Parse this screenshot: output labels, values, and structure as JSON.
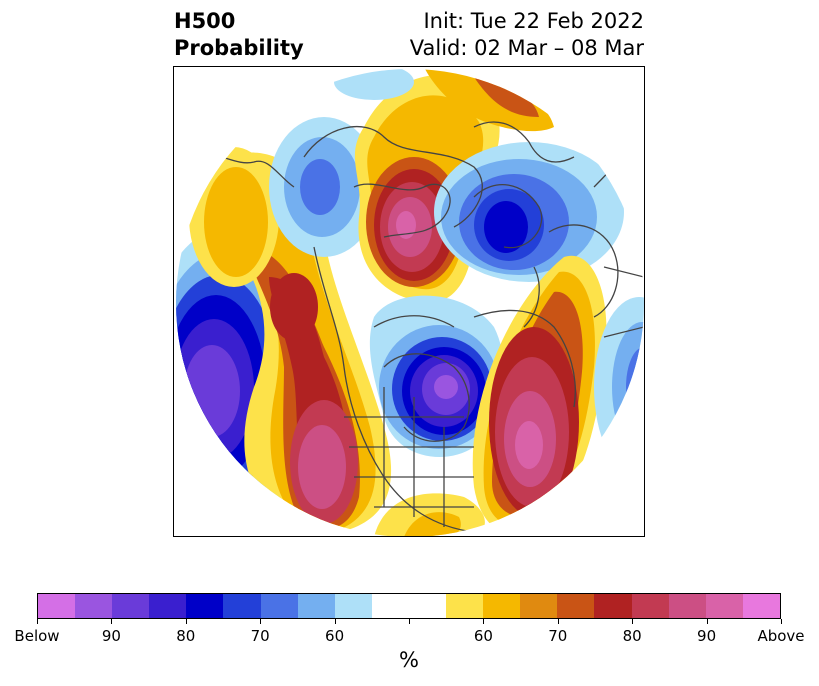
{
  "title": {
    "left_line1": "H500",
    "left_line2": "Probability",
    "right_line1": "Init: Tue 22 Feb 2022",
    "right_line2": "Valid: 02 Mar – 08 Mar"
  },
  "colorbar": {
    "unit": "%",
    "colors": [
      "#d46fe6",
      "#9a55e0",
      "#6a3bd9",
      "#3a1fcf",
      "#0000c8",
      "#2340d8",
      "#4a72e6",
      "#74aff0",
      "#aee0f8",
      "#ffffff",
      "#ffffff",
      "#fde24a",
      "#f5b800",
      "#e08a10",
      "#c95415",
      "#b02222",
      "#c23a52",
      "#cc4f84",
      "#d962a8",
      "#e878de"
    ],
    "tick_labels": [
      "Below",
      "90",
      "80",
      "70",
      "60",
      "",
      "60",
      "70",
      "80",
      "90",
      "Above"
    ]
  },
  "map": {
    "projection": "polar-stereographic",
    "anomalies": [
      {
        "name": "north-pacific-low",
        "sign": "below",
        "max_level": 90
      },
      {
        "name": "central-canada-low",
        "sign": "below",
        "max_level": 90
      },
      {
        "name": "north-atlantic-high",
        "sign": "above",
        "max_level": 90
      },
      {
        "name": "western-us-high",
        "sign": "above",
        "max_level": 90
      },
      {
        "name": "alaska-high",
        "sign": "above",
        "max_level": 80
      },
      {
        "name": "siberia-high",
        "sign": "above",
        "max_level": 90
      },
      {
        "name": "scandinavia-low",
        "sign": "below",
        "max_level": 80
      },
      {
        "name": "east-asia-low",
        "sign": "below",
        "max_level": 60
      }
    ]
  }
}
